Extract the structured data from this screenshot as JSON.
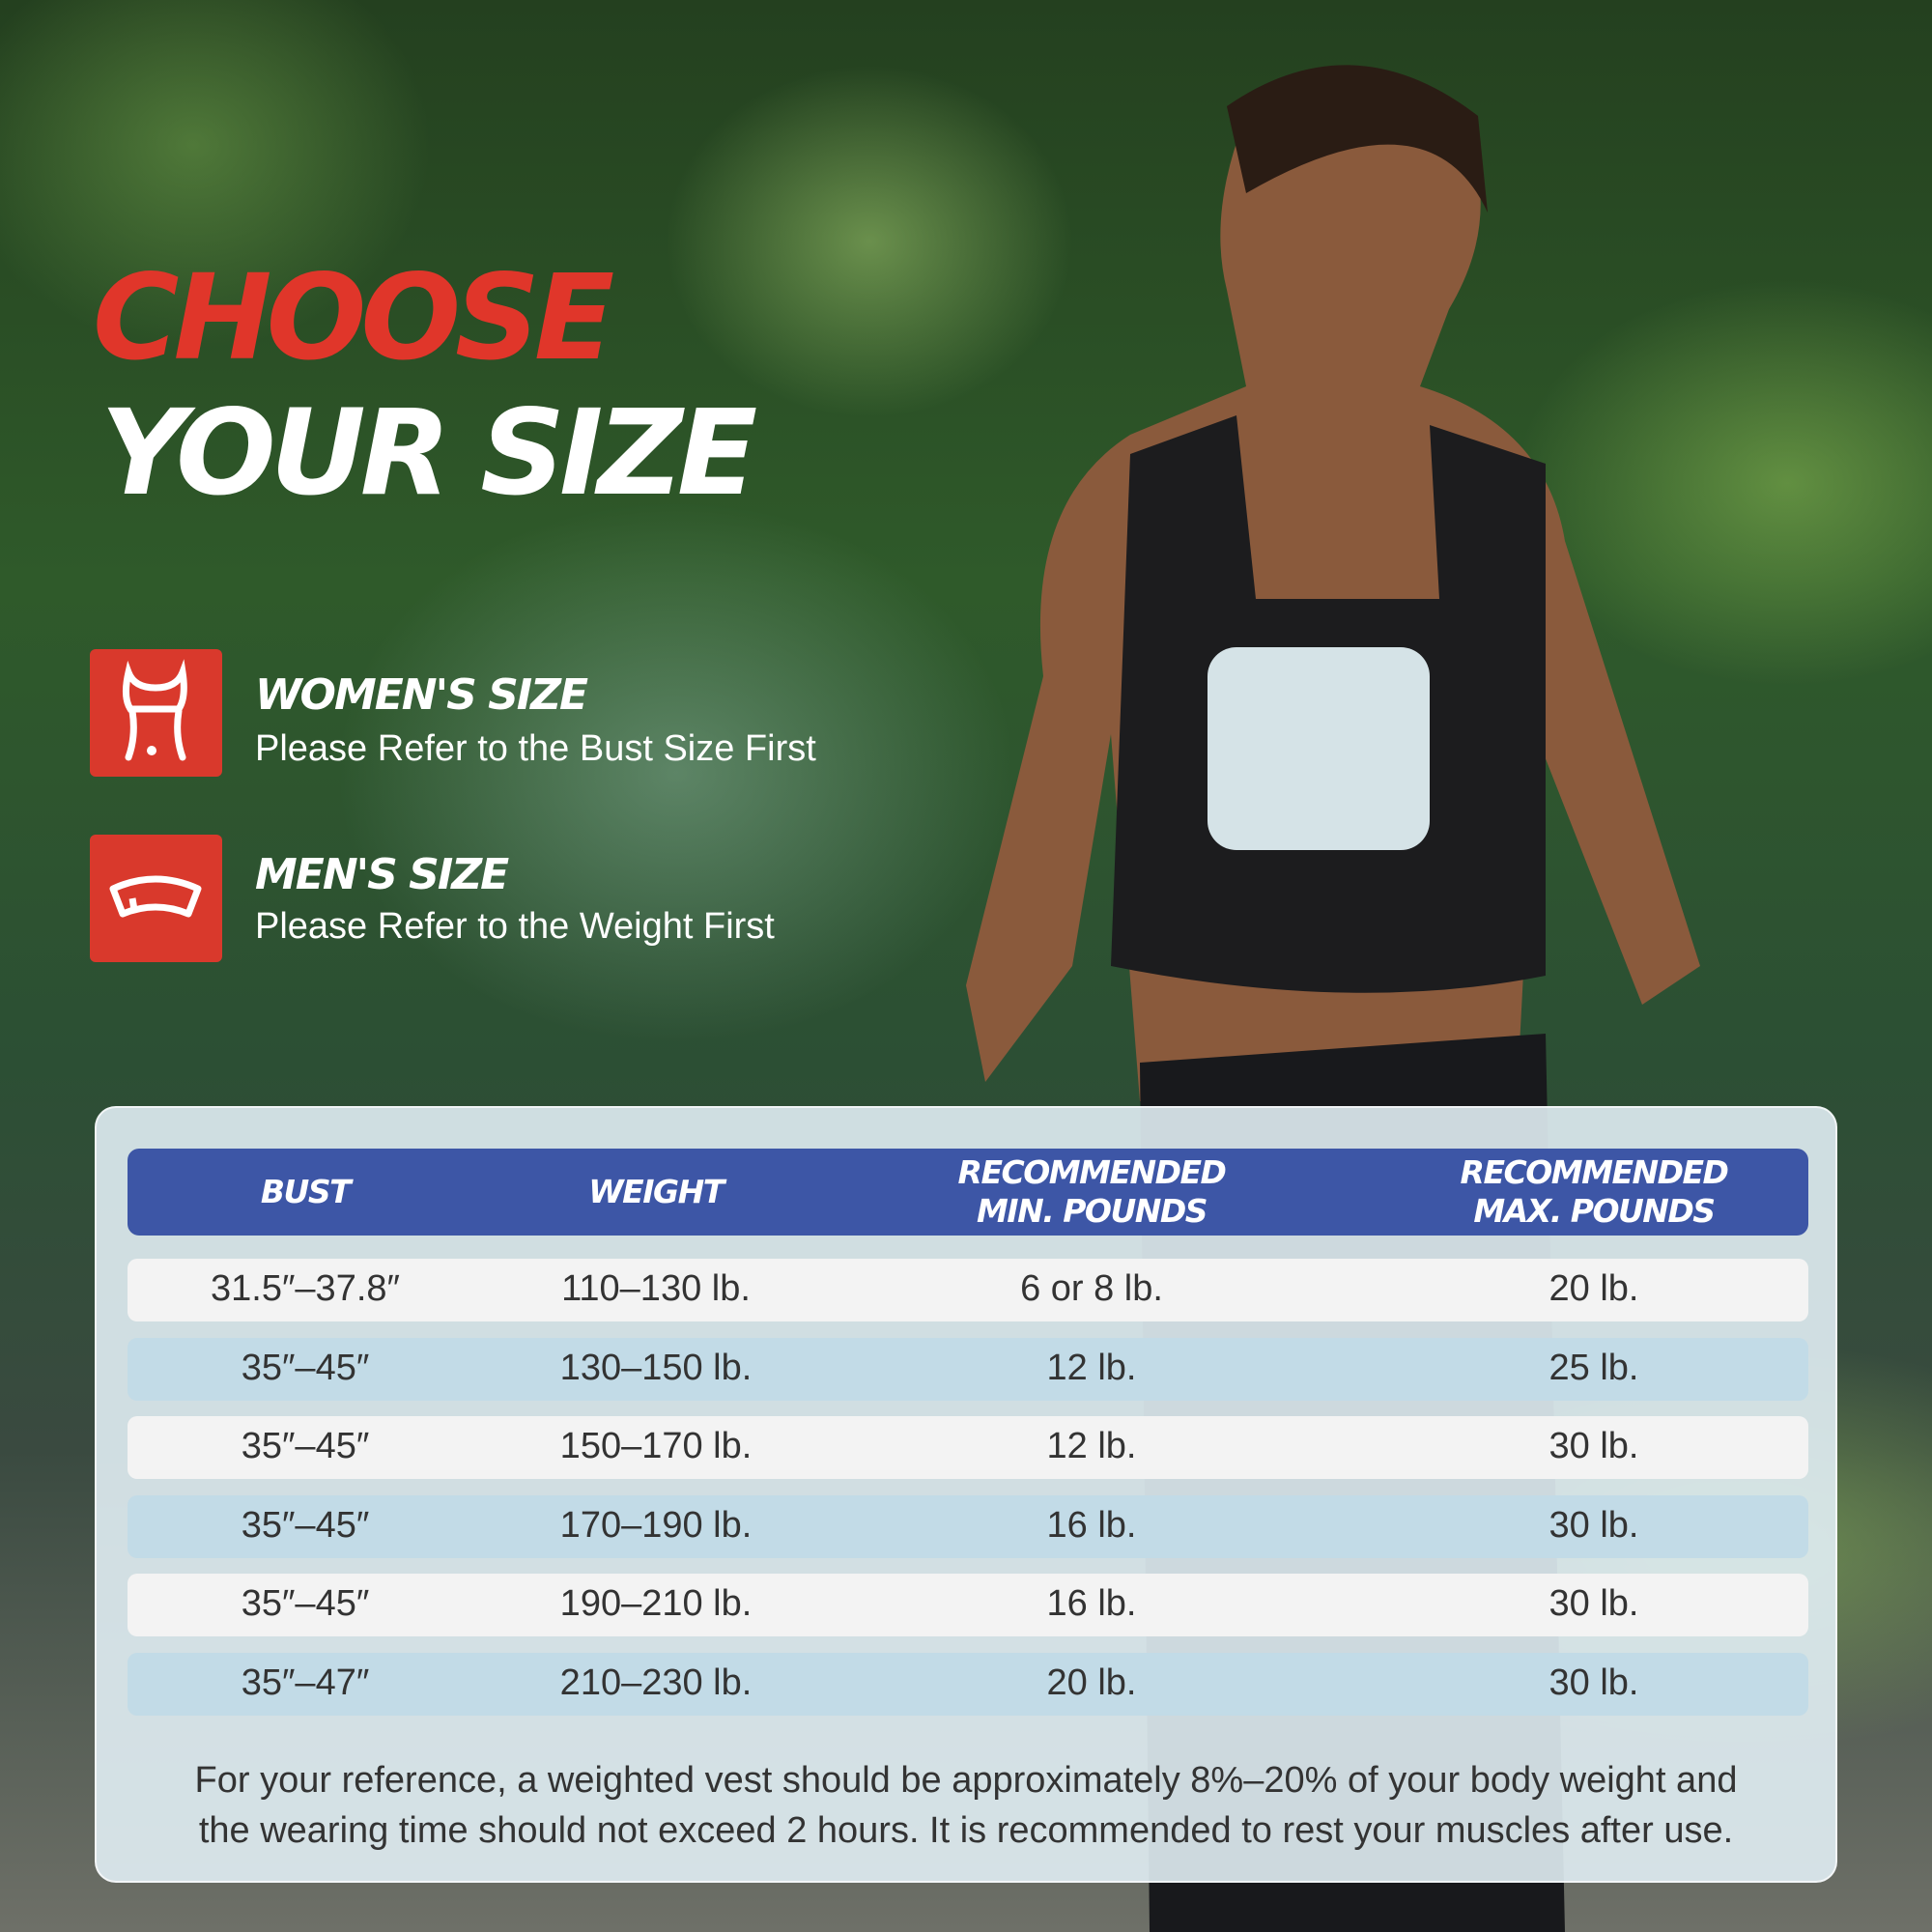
{
  "headline": {
    "line1": "CHOOSE",
    "line2": "YOUR SIZE"
  },
  "colors": {
    "accent": "#e0362a",
    "table_header": "#3d56a6",
    "row_blue": "#c2dbe7"
  },
  "features": [
    {
      "icon": "bust-icon",
      "title": "WOMEN'S SIZE",
      "subtitle": "Please Refer to the Bust Size First"
    },
    {
      "icon": "waist-icon",
      "title": "MEN'S SIZE",
      "subtitle": "Please Refer to the Weight First"
    }
  ],
  "table": {
    "headers": [
      [
        "BUST",
        ""
      ],
      [
        "WEIGHT",
        ""
      ],
      [
        "RECOMMENDED",
        "MIN. POUNDS"
      ],
      [
        "RECOMMENDED",
        "MAX. POUNDS"
      ]
    ],
    "rows": [
      [
        "31.5″–37.8″",
        "110–130 lb.",
        "6 or 8 lb.",
        "20 lb."
      ],
      [
        "35″–45″",
        "130–150 lb.",
        "12 lb.",
        "25 lb."
      ],
      [
        "35″–45″",
        "150–170 lb.",
        "12 lb.",
        "30 lb."
      ],
      [
        "35″–45″",
        "170–190 lb.",
        "16 lb.",
        "30 lb."
      ],
      [
        "35″–45″",
        "190–210 lb.",
        "16 lb.",
        "30 lb."
      ],
      [
        "35″–47″",
        "210–230 lb.",
        "20 lb.",
        "30 lb."
      ]
    ]
  },
  "footnote": {
    "line1": "For your reference, a weighted vest should be approximately 8%–20% of your body weight and",
    "line2": "the wearing time should not exceed 2 hours. It is recommended to rest your muscles after use."
  }
}
